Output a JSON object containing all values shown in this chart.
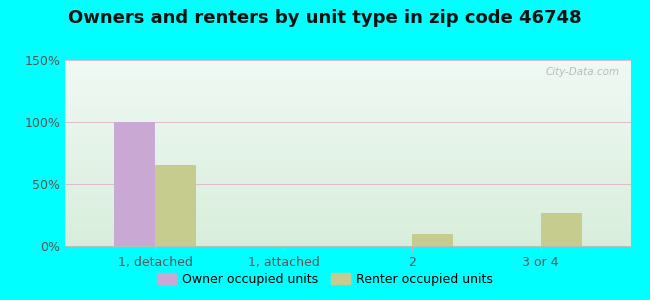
{
  "title": "Owners and renters by unit type in zip code 46748",
  "categories": [
    "1, detached",
    "1, attached",
    "2",
    "3 or 4"
  ],
  "owner_values": [
    100,
    0,
    0,
    0
  ],
  "renter_values": [
    65,
    0,
    10,
    27
  ],
  "owner_color": "#c9a8d4",
  "renter_color": "#c5cc8e",
  "ylim": [
    0,
    150
  ],
  "yticks": [
    0,
    50,
    100,
    150
  ],
  "ytick_labels": [
    "0%",
    "50%",
    "100%",
    "150%"
  ],
  "bar_width": 0.32,
  "outer_bg": "#00ffff",
  "legend_owner": "Owner occupied units",
  "legend_renter": "Renter occupied units",
  "title_fontsize": 13,
  "watermark": "City-Data.com"
}
